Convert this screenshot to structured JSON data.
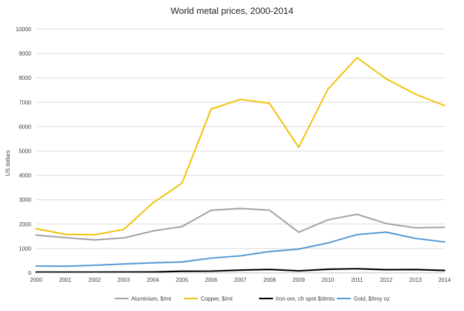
{
  "chart_data": {
    "type": "line",
    "title": "World  metal prices, 2000-2014",
    "xlabel": "",
    "ylabel": "US dollars",
    "ylim": [
      0,
      10000
    ],
    "yticks": [
      "0",
      "1000",
      "2000",
      "3000",
      "4000",
      "5000",
      "6000",
      "7000",
      "8000",
      "9000",
      "10000"
    ],
    "categories": [
      "2000",
      "2001",
      "2002",
      "2003",
      "2004",
      "2005",
      "2006",
      "2007",
      "2008",
      "2009",
      "2010",
      "2011",
      "2012",
      "2013",
      "2014"
    ],
    "grid": true,
    "legend_position": "bottom",
    "series": [
      {
        "name": "Aluminium, $/mt",
        "color": "#a5a5a5",
        "values": [
          1549,
          1444,
          1350,
          1431,
          1716,
          1898,
          2570,
          2638,
          2573,
          1665,
          2173,
          2401,
          2023,
          1847,
          1867
        ]
      },
      {
        "name": "Copper, $/mt",
        "color": "#f2c314",
        "values": [
          1813,
          1578,
          1559,
          1779,
          2866,
          3679,
          6722,
          7118,
          6956,
          5150,
          7535,
          8828,
          7962,
          7332,
          6863
        ]
      },
      {
        "name": "Iron ore, cfr spot $/dmtu",
        "color": "#000000",
        "values": [
          29,
          30,
          30,
          32,
          38,
          65,
          69,
          110,
          139,
          80,
          146,
          168,
          128,
          135,
          97
        ]
      },
      {
        "name": "Gold, $/troy oz",
        "color": "#5b9bd5",
        "values": [
          279,
          271,
          310,
          363,
          410,
          445,
          604,
          697,
          872,
          973,
          1225,
          1569,
          1670,
          1411,
          1266
        ]
      }
    ]
  }
}
